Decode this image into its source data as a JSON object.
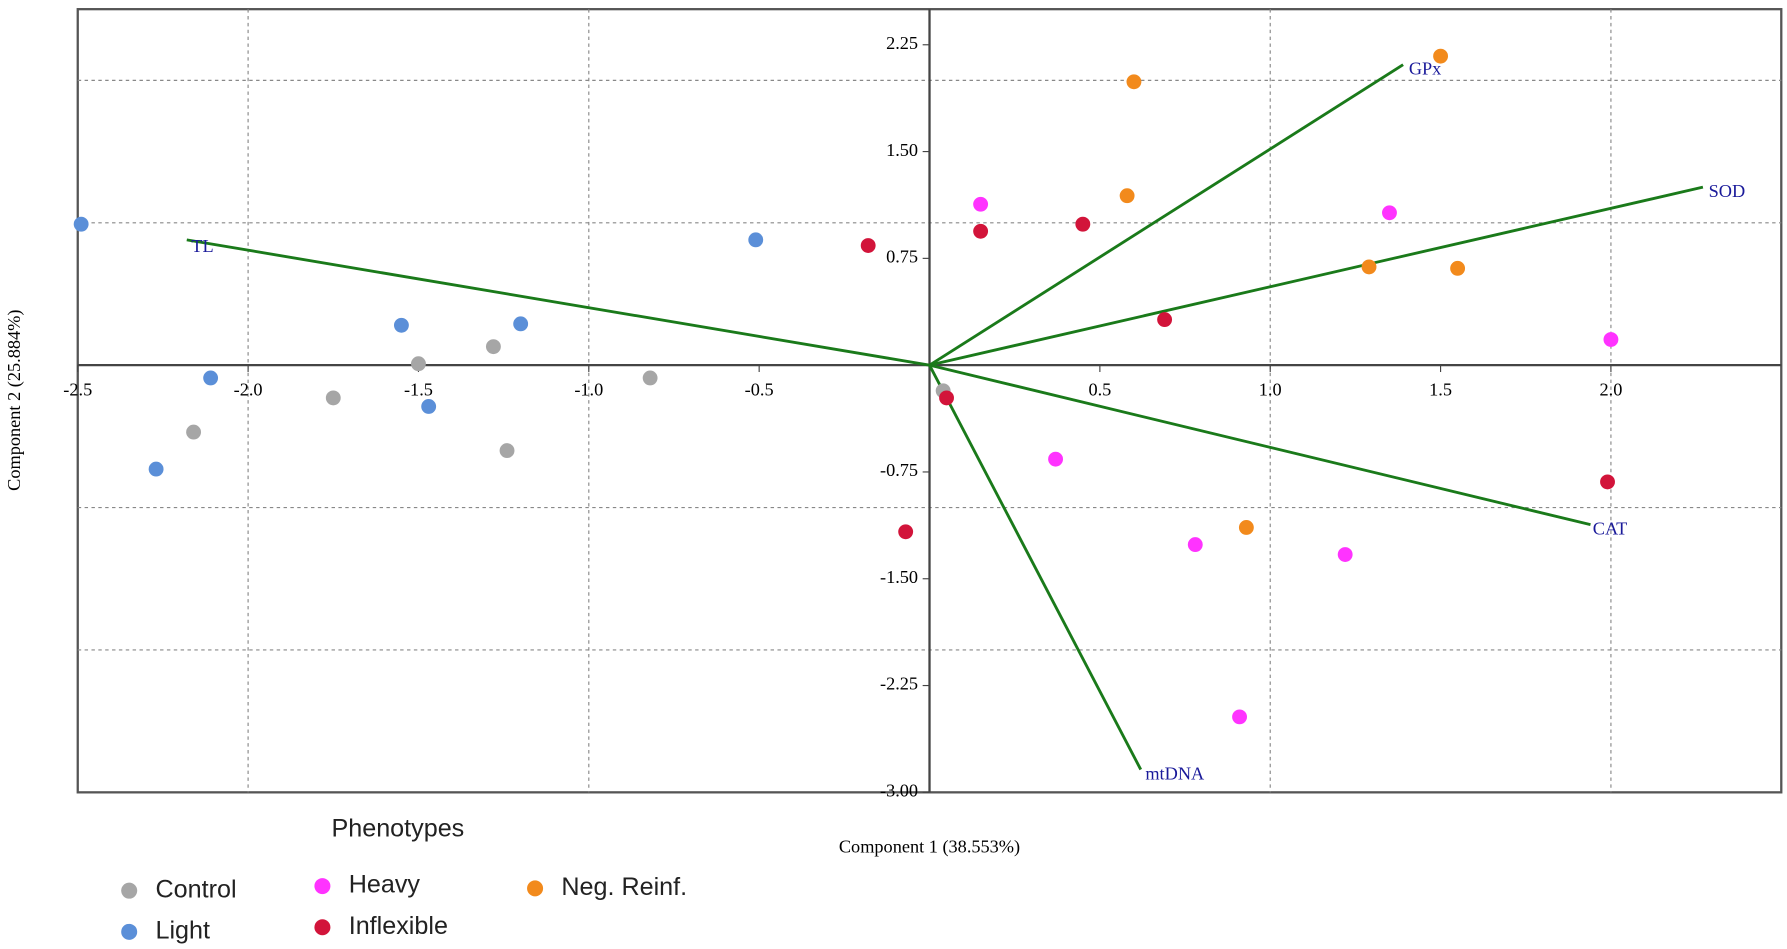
{
  "chart_data": {
    "type": "scatter",
    "x_label": "Component 1 (38.553%)",
    "y_label": "Component 2 (25.884%)",
    "legend_title": "Phenotypes",
    "xlim": [
      -2.5,
      2.5
    ],
    "ylim": [
      -3,
      2.5
    ],
    "xticks": [
      {
        "value": -2.5,
        "label": "-2.5"
      },
      {
        "value": -2,
        "label": "-2.0"
      },
      -1.5,
      {
        "value": -1,
        "label": "-1.0"
      },
      -0.5,
      0.5,
      {
        "value": 1,
        "label": "1.0"
      },
      1.5,
      {
        "value": 2,
        "label": "2.0"
      }
    ],
    "yticks": [
      2.25,
      {
        "value": 1.5,
        "label": "1.50"
      },
      0.75,
      -0.75,
      {
        "value": -1.5,
        "label": "-1.50"
      },
      -2.25,
      {
        "value": -3,
        "label": "-3.00"
      }
    ],
    "xgrid": [
      -2,
      -1,
      1,
      2
    ],
    "ygrid": [
      -2,
      -1,
      1,
      2
    ],
    "series": [
      {
        "name": "Control",
        "color": "#a6a6a6",
        "x": [
          -1.5,
          -1.28,
          -1.75,
          -2.16,
          -1.24,
          -0.82,
          0.04
        ],
        "y": [
          0.01,
          0.13,
          -0.23,
          -0.47,
          -0.6,
          -0.09,
          -0.18
        ]
      },
      {
        "name": "Light",
        "color": "#5b8fd8",
        "x": [
          -2.49,
          -0.51,
          -1.55,
          -1.2,
          -2.11,
          -1.47,
          -2.27
        ],
        "y": [
          0.99,
          0.88,
          0.28,
          0.29,
          -0.09,
          -0.29,
          -0.73
        ]
      },
      {
        "name": "Heavy",
        "color": "#ff33ff",
        "x": [
          0.15,
          1.35,
          2.0,
          0.37,
          0.78,
          1.22,
          0.91
        ],
        "y": [
          1.13,
          1.07,
          0.18,
          -0.66,
          -1.26,
          -1.33,
          -2.47
        ]
      },
      {
        "name": "Inflexible",
        "color": "#d2143a",
        "x": [
          -0.18,
          0.15,
          0.45,
          0.69,
          0.05,
          -0.07,
          1.99
        ],
        "y": [
          0.84,
          0.94,
          0.99,
          0.32,
          -0.23,
          -1.17,
          -0.82
        ]
      },
      {
        "name": "Neg. Reinf.",
        "color": "#f28a1c",
        "x": [
          1.5,
          0.6,
          0.58,
          1.29,
          1.55,
          0.93
        ],
        "y": [
          2.17,
          1.99,
          1.19,
          0.69,
          0.68,
          -1.14
        ]
      }
    ],
    "loadings_color": "#1a7a1a",
    "loadings": [
      {
        "name": "GPx",
        "x": 1.39,
        "y": 2.11
      },
      {
        "name": "SOD",
        "x": 2.27,
        "y": 1.25
      },
      {
        "name": "CAT",
        "x": 1.94,
        "y": -1.12
      },
      {
        "name": "mtDNA",
        "x": 0.62,
        "y": -2.84
      },
      {
        "name": "TL",
        "x": -2.18,
        "y": 0.88
      }
    ]
  }
}
